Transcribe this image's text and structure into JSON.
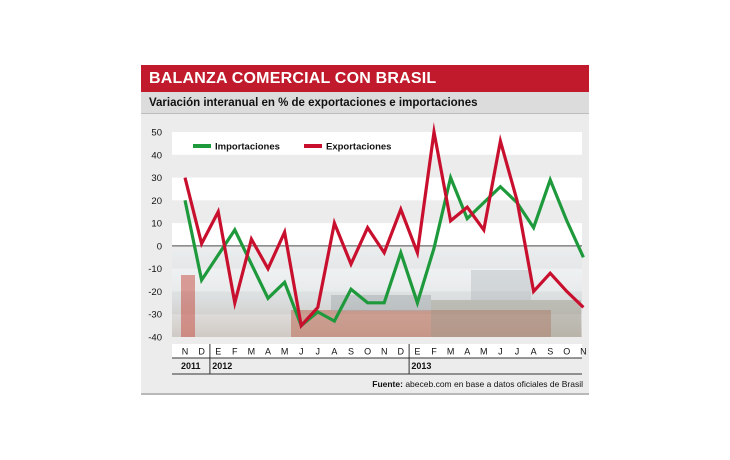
{
  "title": "BALANZA COMERCIAL CON BRASIL",
  "subtitle": "Variación interanual en % de exportaciones e importaciones",
  "source_label": "Fuente:",
  "source_text": "abeceb.com en base a datos oficiales de Brasil",
  "colors": {
    "importaciones": "#1e9a3c",
    "exportaciones": "#c8102e",
    "title_bg": "#c01a2c"
  },
  "chart_data": {
    "type": "line",
    "x": [
      "N",
      "D",
      "E",
      "F",
      "M",
      "A",
      "M",
      "J",
      "J",
      "A",
      "S",
      "O",
      "N",
      "D",
      "E",
      "F",
      "M",
      "A",
      "M",
      "J",
      "J",
      "A",
      "S",
      "O",
      "N"
    ],
    "year_labels": [
      "2011",
      "2012",
      "2013"
    ],
    "ylim": [
      -40,
      50
    ],
    "yticks": [
      50,
      40,
      30,
      20,
      10,
      0,
      -10,
      -20,
      -30,
      -40
    ],
    "grid": true,
    "legend": "top-left",
    "series": [
      {
        "name": "Importaciones",
        "values": [
          20,
          -15,
          -4,
          7,
          -8,
          -23,
          -16,
          -35,
          -29,
          -33,
          -19,
          -25,
          -25,
          -3,
          -25,
          -1,
          30,
          12,
          19,
          26,
          19,
          8,
          29,
          11,
          -5
        ]
      },
      {
        "name": "Exportaciones",
        "values": [
          30,
          1,
          15,
          -25,
          3,
          -10,
          6,
          -35,
          -27,
          10,
          -8,
          8,
          -3,
          16,
          -3,
          50,
          11,
          17,
          7,
          46,
          20,
          -20,
          -12,
          -20,
          -27
        ]
      }
    ]
  }
}
